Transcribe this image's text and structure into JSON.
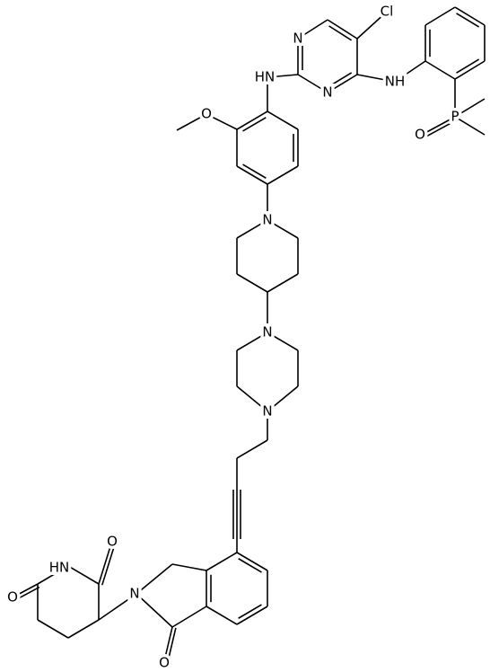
{
  "atoms": [
    {
      "label": "Cl"
    },
    {
      "label": "N"
    },
    {
      "label": "N"
    },
    {
      "label": "HN"
    },
    {
      "label": "NH"
    },
    {
      "label": "P"
    },
    {
      "label": "O"
    },
    {
      "label": "O"
    },
    {
      "label": "N"
    },
    {
      "label": "N"
    },
    {
      "label": "N"
    },
    {
      "label": "HN"
    },
    {
      "label": "O"
    },
    {
      "label": "O"
    },
    {
      "label": "N"
    },
    {
      "label": "O"
    }
  ]
}
